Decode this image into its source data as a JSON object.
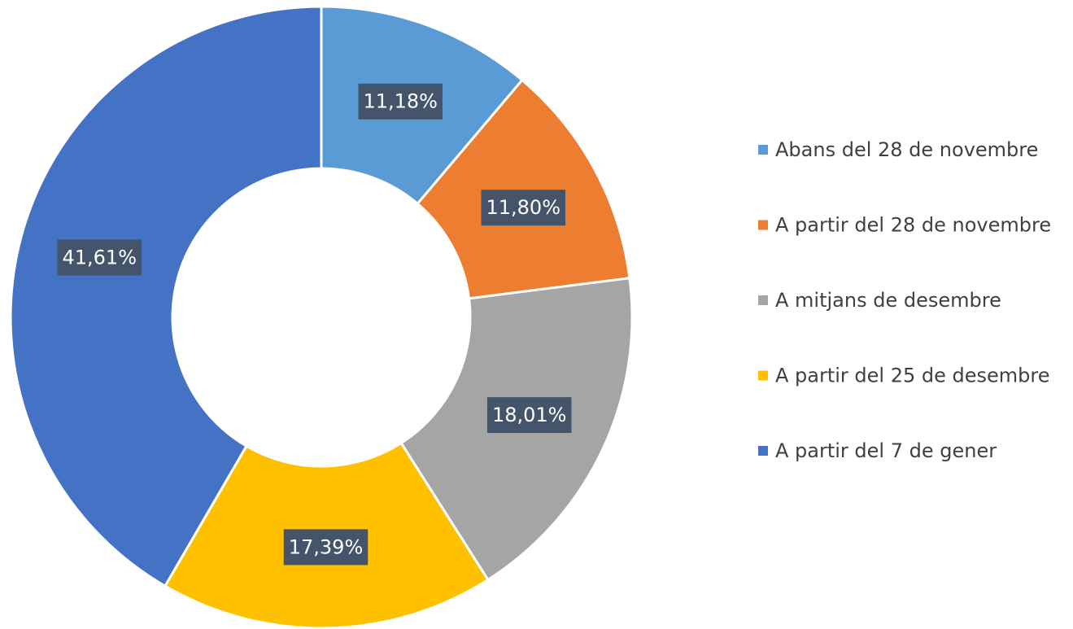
{
  "chart_data": {
    "type": "donut",
    "categories": [
      "Abans del 28 de novembre",
      "A partir del 28 de novembre",
      "A mitjans de desembre",
      "A partir del 25 de desembre",
      "A partir del 7 de gener"
    ],
    "values": [
      11.18,
      11.8,
      18.01,
      17.39,
      41.61
    ],
    "value_labels": [
      "11,18%",
      "11,80%",
      "18,01%",
      "17,39%",
      "41,61%"
    ],
    "colors": [
      "#5b9bd5",
      "#ed7d31",
      "#a5a5a5",
      "#ffc000",
      "#4472c4"
    ],
    "legend": "right"
  }
}
